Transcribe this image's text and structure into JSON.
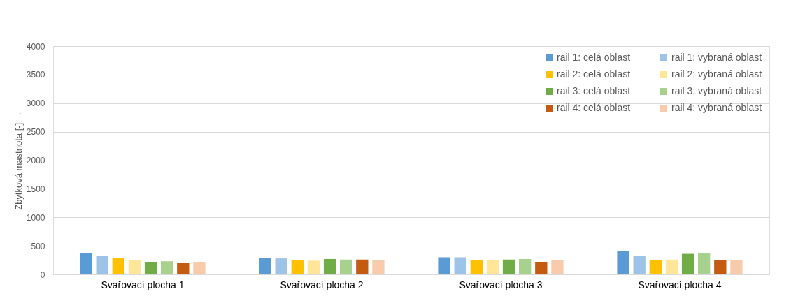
{
  "chart_data": {
    "type": "bar",
    "ylabel": "Zbytková mastnota [-] →",
    "categories": [
      "Svařovací plocha 1",
      "Svařovací plocha 2",
      "Svařovací plocha 3",
      "Svařovací plocha 4"
    ],
    "series": [
      {
        "name": "rail 1: celá oblast",
        "color": "#5b9bd5",
        "values": [
          370,
          290,
          300,
          410
        ]
      },
      {
        "name": "rail 1: vybraná oblast",
        "color": "#9dc3e6",
        "values": [
          330,
          280,
          300,
          330
        ]
      },
      {
        "name": "rail 2: celá oblast",
        "color": "#ffc000",
        "values": [
          290,
          250,
          250,
          250
        ]
      },
      {
        "name": "rail 2: vybraná oblast",
        "color": "#ffe699",
        "values": [
          250,
          240,
          250,
          260
        ]
      },
      {
        "name": "rail 3: celá oblast",
        "color": "#70ad47",
        "values": [
          220,
          270,
          260,
          360
        ]
      },
      {
        "name": "rail 3: vybraná oblast",
        "color": "#a9d18e",
        "values": [
          230,
          260,
          270,
          370
        ]
      },
      {
        "name": "rail 4: celá oblast",
        "color": "#c55a11",
        "values": [
          200,
          260,
          220,
          250
        ]
      },
      {
        "name": "rail 4: vybraná oblast",
        "color": "#f8cbad",
        "values": [
          220,
          250,
          250,
          250
        ]
      }
    ],
    "ylim": [
      0,
      4000
    ],
    "yticks": [
      0,
      500,
      1000,
      1500,
      2000,
      2500,
      3000,
      3500,
      4000
    ],
    "grid": "y",
    "legend": "top right"
  }
}
